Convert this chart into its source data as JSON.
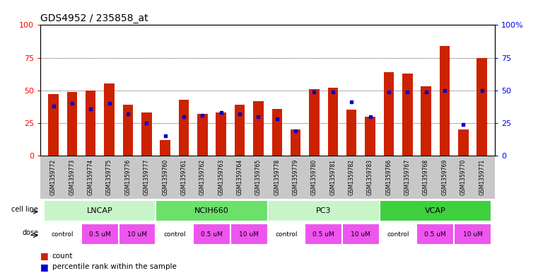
{
  "title": "GDS4952 / 235858_at",
  "samples": [
    "GSM1359772",
    "GSM1359773",
    "GSM1359774",
    "GSM1359775",
    "GSM1359776",
    "GSM1359777",
    "GSM1359760",
    "GSM1359761",
    "GSM1359762",
    "GSM1359763",
    "GSM1359764",
    "GSM1359765",
    "GSM1359778",
    "GSM1359779",
    "GSM1359780",
    "GSM1359781",
    "GSM1359782",
    "GSM1359783",
    "GSM1359766",
    "GSM1359767",
    "GSM1359768",
    "GSM1359769",
    "GSM1359770",
    "GSM1359771"
  ],
  "red_values": [
    47,
    49,
    50,
    55,
    39,
    33,
    12,
    43,
    32,
    33,
    39,
    42,
    36,
    20,
    51,
    52,
    35,
    30,
    64,
    63,
    53,
    84,
    20,
    75
  ],
  "blue_values": [
    38,
    40,
    36,
    40,
    32,
    25,
    15,
    30,
    31,
    33,
    32,
    30,
    28,
    19,
    49,
    49,
    41,
    30,
    49,
    49,
    49,
    50,
    24,
    50
  ],
  "cell_lines": [
    "LNCAP",
    "NCIH660",
    "PC3",
    "VCAP"
  ],
  "cell_line_spans": [
    6,
    6,
    6,
    6
  ],
  "cell_line_colors": [
    "#c8f5c8",
    "#6be06b",
    "#c8f5c8",
    "#3ecf3e"
  ],
  "doses": [
    "control",
    "0.5 uM",
    "10 uM",
    "control",
    "0.5 uM",
    "10 uM",
    "control",
    "0.5 uM",
    "10 uM",
    "control",
    "0.5 uM",
    "10 uM"
  ],
  "dose_colors": [
    "#ffffff",
    "#ee55ee",
    "#ee55ee",
    "#ffffff",
    "#ee55ee",
    "#ee55ee",
    "#ffffff",
    "#ee55ee",
    "#ee55ee",
    "#ffffff",
    "#ee55ee",
    "#ee55ee"
  ],
  "bar_color": "#cc2200",
  "point_color": "#0000cc",
  "ylim": [
    0,
    100
  ],
  "grid_values": [
    25,
    50,
    75
  ],
  "left_yticks": [
    0,
    25,
    50,
    75,
    100
  ],
  "left_yticklabels": [
    "0",
    "25",
    "50",
    "75",
    "100"
  ],
  "right_yticklabels": [
    "0",
    "25",
    "50",
    "75",
    "100%"
  ],
  "legend_count": "count",
  "legend_pct": "percentile rank within the sample",
  "xtick_bg_color": "#c8c8c8",
  "row_label_color": "#000000",
  "cell_line_border_color": "#888888"
}
